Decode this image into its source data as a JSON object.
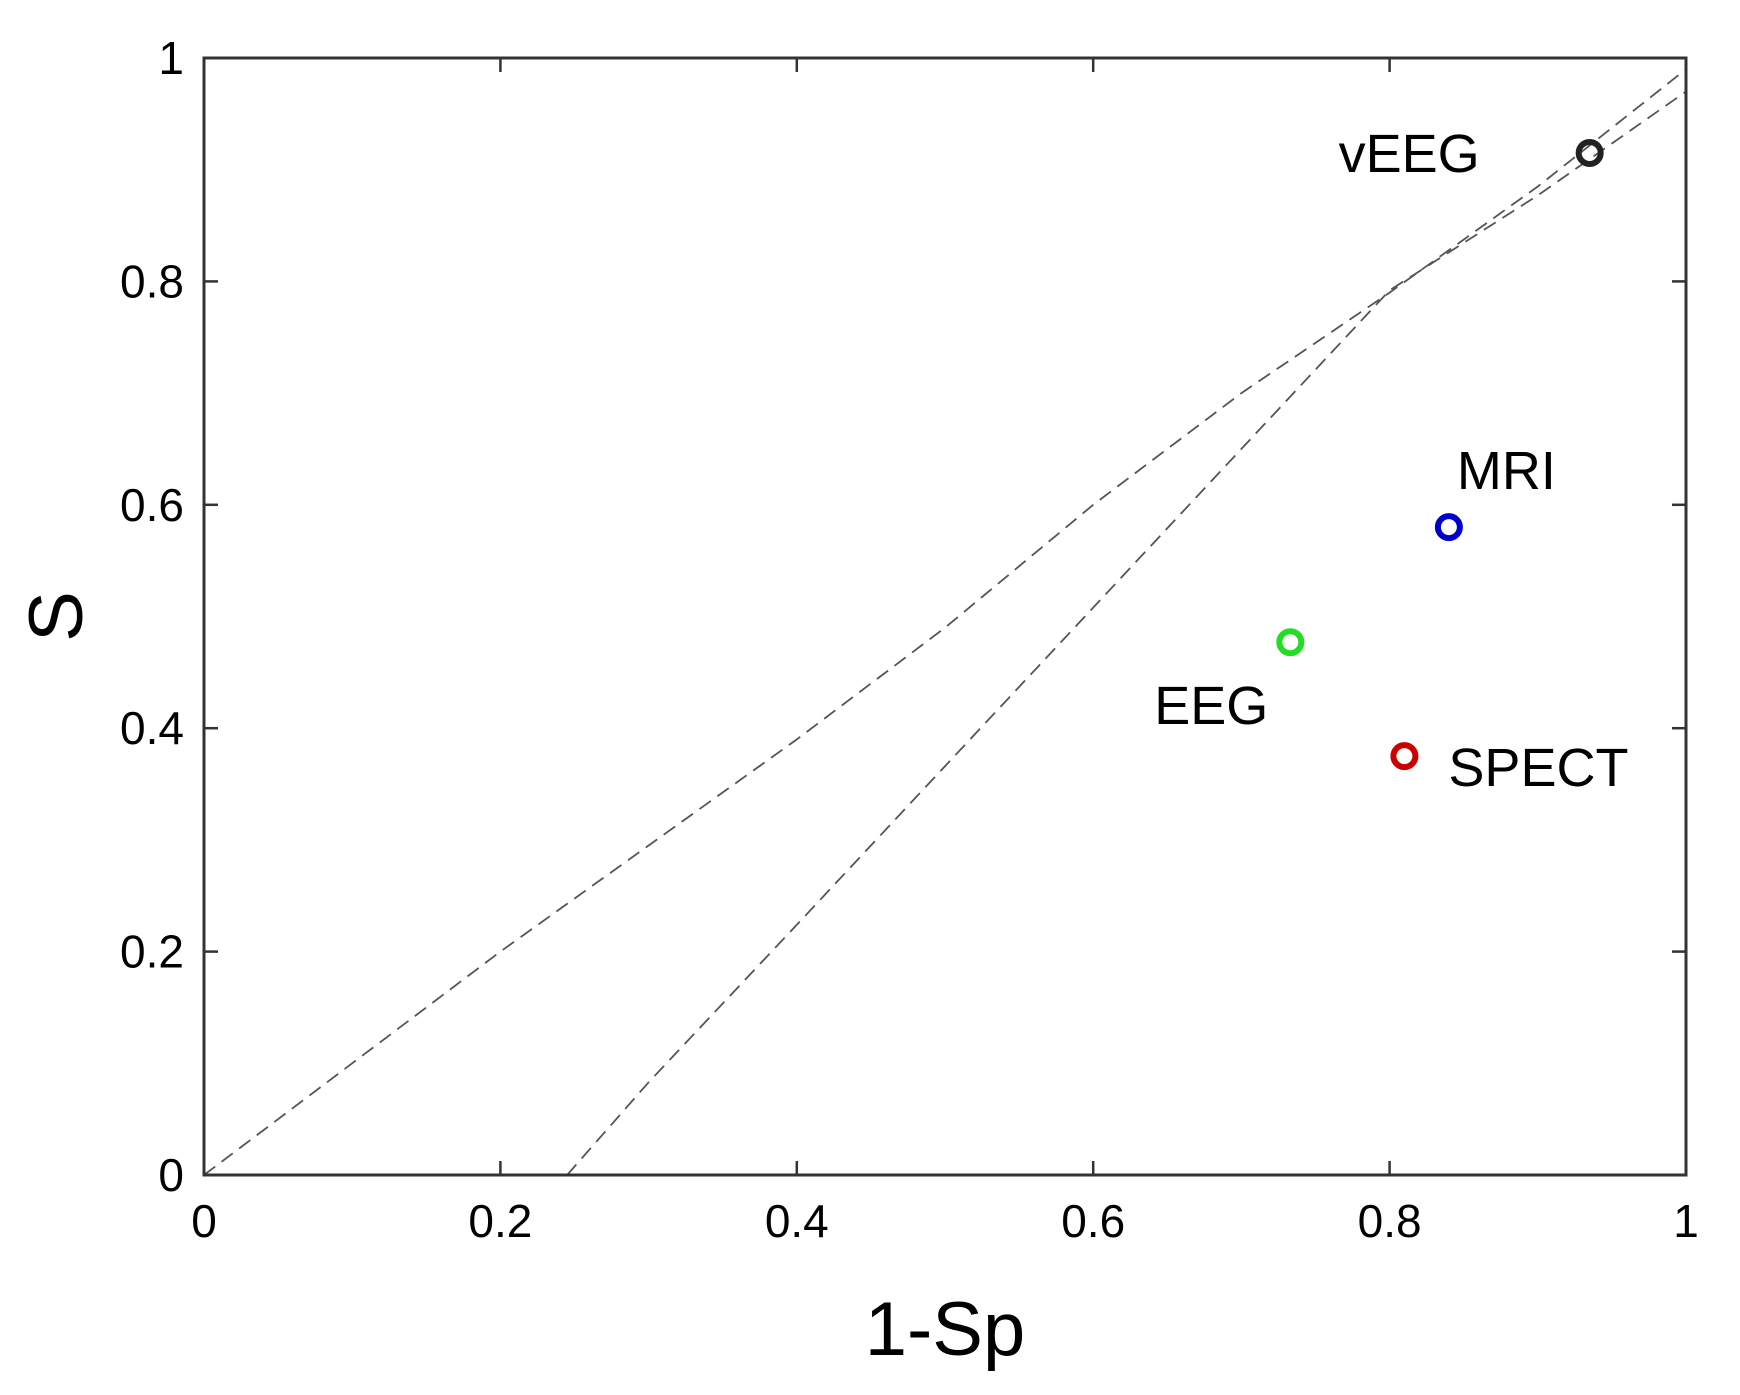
{
  "chart_data": {
    "type": "scatter",
    "title": "",
    "xlabel": "1-Sp",
    "ylabel": "S",
    "xlim": [
      0,
      1
    ],
    "ylim": [
      0,
      1
    ],
    "xticks": [
      "0",
      "0.2",
      "0.4",
      "0.6",
      "0.8",
      "1"
    ],
    "yticks": [
      "0",
      "0.2",
      "0.4",
      "0.6",
      "0.8",
      "1"
    ],
    "grid": false,
    "points": [
      {
        "label": "vEEG",
        "x": 0.935,
        "y": 0.915,
        "color": "#222222"
      },
      {
        "label": "MRI",
        "x": 0.84,
        "y": 0.58,
        "color": "#0000cc"
      },
      {
        "label": "EEG",
        "x": 0.733,
        "y": 0.477,
        "color": "#22dd22"
      },
      {
        "label": "SPECT",
        "x": 0.81,
        "y": 0.375,
        "color": "#cc0000"
      }
    ],
    "reference_lines": [
      {
        "style": "dashed",
        "color": "#555555",
        "points": [
          [
            0,
            0
          ],
          [
            0.1,
            0.1
          ],
          [
            0.2,
            0.2
          ],
          [
            0.3,
            0.295
          ],
          [
            0.4,
            0.39
          ],
          [
            0.5,
            0.49
          ],
          [
            0.6,
            0.6
          ],
          [
            0.7,
            0.7
          ],
          [
            0.8,
            0.79
          ],
          [
            0.9,
            0.885
          ],
          [
            1,
            0.99
          ]
        ]
      },
      {
        "style": "dashed",
        "color": "#555555",
        "points": [
          [
            0.245,
            0
          ],
          [
            0.3,
            0.083
          ],
          [
            0.4,
            0.224
          ],
          [
            0.5,
            0.366
          ],
          [
            0.6,
            0.508
          ],
          [
            0.7,
            0.65
          ],
          [
            0.8,
            0.792
          ],
          [
            0.9,
            0.877
          ],
          [
            1,
            0.97
          ]
        ]
      }
    ]
  }
}
